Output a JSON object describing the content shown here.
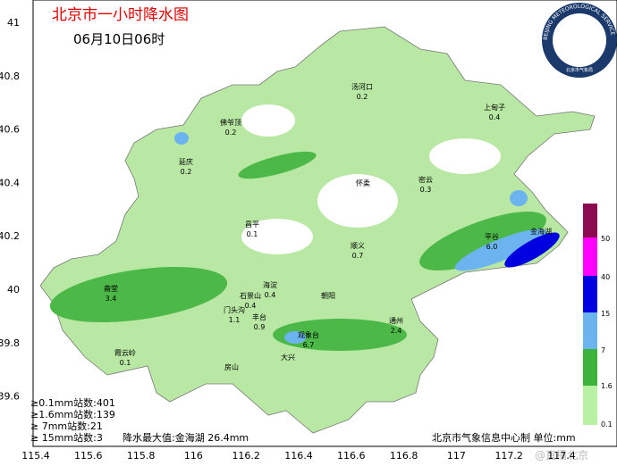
{
  "header": {
    "title": "北京市一小时降水图",
    "time": "06月10日06时"
  },
  "logo": {
    "text": "BEIJING METEOROLOGICAL SERVICE",
    "subtext": "北京市气象局"
  },
  "axes": {
    "x": [
      "115.4",
      "115.6",
      "115.8",
      "116",
      "116.2",
      "116.4",
      "116.6",
      "116.8",
      "117",
      "117.2",
      "117.4"
    ],
    "y": [
      "41",
      "40.8",
      "40.6",
      "40.4",
      "40.2",
      "40",
      "39.8",
      "39.6"
    ]
  },
  "stations": [
    {
      "name": "汤河口",
      "value": "0.2"
    },
    {
      "name": "上甸子",
      "value": "0.4"
    },
    {
      "name": "佛爷顶",
      "value": "0.2"
    },
    {
      "name": "延庆",
      "value": "0.2"
    },
    {
      "name": "怀柔"
    },
    {
      "name": "密云",
      "value": "0.3"
    },
    {
      "name": "昌平",
      "value": "0.1"
    },
    {
      "name": "顺义",
      "value": "0.7"
    },
    {
      "name": "平谷",
      "value": "6.0"
    },
    {
      "name": "金海湖"
    },
    {
      "name": "斋堂",
      "value": "3.4"
    },
    {
      "name": "海淀",
      "value": "0.4"
    },
    {
      "name": "石景山",
      "value": "0.4"
    },
    {
      "name": "门头沟",
      "value": "1.1"
    },
    {
      "name": "丰台",
      "value": "0.9"
    },
    {
      "name": "朝阳"
    },
    {
      "name": "观象台",
      "value": "6.7"
    },
    {
      "name": "通州",
      "value": "2.4"
    },
    {
      "name": "大兴"
    },
    {
      "name": "房山"
    },
    {
      "name": "霞云岭",
      "value": "0.1"
    }
  ],
  "legend": {
    "levels": [
      "50",
      "40",
      "15",
      "7",
      "1.6",
      "0.1"
    ]
  },
  "stats": [
    "≥0.1mm站数:401",
    "≥1.6mm站数:139",
    "≥  7mm站数:21",
    "≥  15mm站数:3"
  ],
  "max_note": "降水最大值:金海湖 26.4mm",
  "credit": "北京市气象信息中心制 单位:mm",
  "watermark": "@直播北京"
}
